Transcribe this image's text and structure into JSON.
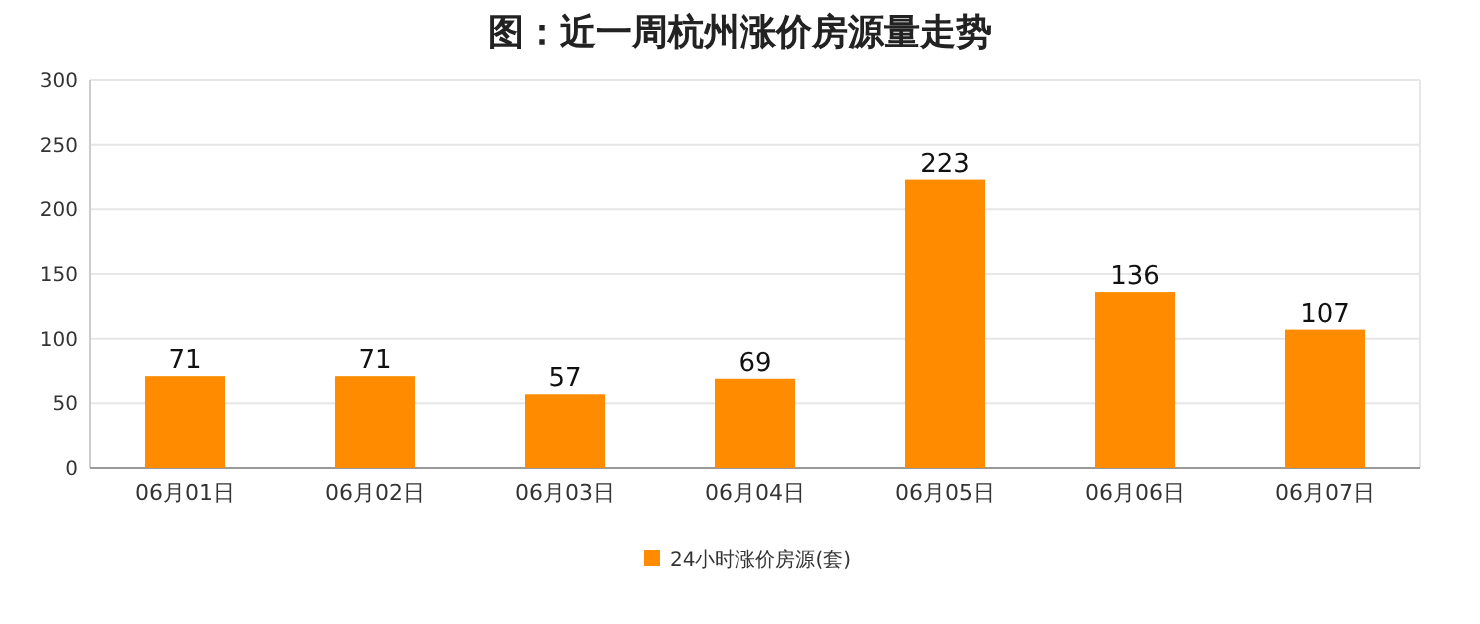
{
  "chart_data": {
    "type": "bar",
    "title": "图：近一周杭州涨价房源量走势",
    "categories": [
      "06月01日",
      "06月02日",
      "06月03日",
      "06月04日",
      "06月05日",
      "06月06日",
      "06月07日"
    ],
    "series": [
      {
        "name": "24小时涨价房源(套)",
        "color": "#ff8c00",
        "values": [
          71,
          71,
          57,
          69,
          223,
          136,
          107
        ]
      }
    ],
    "ylim": [
      0,
      300
    ],
    "yticks": [
      0,
      50,
      100,
      150,
      200,
      250,
      300
    ],
    "grid": "y",
    "legend": "bottom",
    "data_labels": true
  }
}
